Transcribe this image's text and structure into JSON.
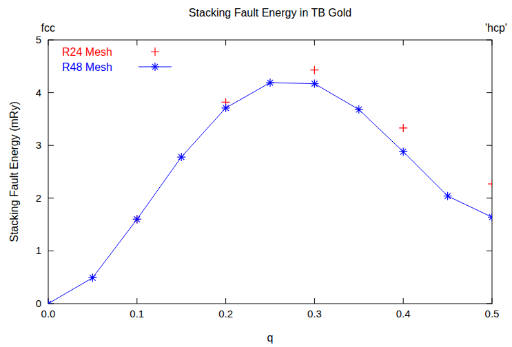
{
  "chart_data": {
    "type": "line",
    "title": "Stacking Fault Energy in TB Gold",
    "x_label": "q",
    "y_label": "Stacking Fault Energy (mRy)",
    "annotations": [
      {
        "text": "fcc",
        "x": 0
      },
      {
        "text": "'hcp'",
        "x": 0.5
      }
    ],
    "series": [
      {
        "name": "R24 Mesh",
        "color": "#ff0000",
        "marker": "plus",
        "line_style": "none",
        "x": [
          0.1,
          0.2,
          0.3,
          0.4,
          0.5
        ],
        "values": [
          1.6,
          3.82,
          4.43,
          3.33,
          2.27
        ]
      },
      {
        "name": "R48 Mesh",
        "color": "#0000ff",
        "marker": "star",
        "line_style": "solid",
        "x": [
          0,
          0.05,
          0.1,
          0.15,
          0.2,
          0.25,
          0.3,
          0.35,
          0.4,
          0.45,
          0.5
        ],
        "values": [
          0,
          0.49,
          1.6,
          2.78,
          3.71,
          4.19,
          4.17,
          3.68,
          2.88,
          2.04,
          1.64
        ]
      }
    ],
    "xlim": [
      0,
      0.5
    ],
    "xticks": [
      {
        "value": 0,
        "label": "0.0"
      },
      0.1,
      0.2,
      0.3,
      0.4,
      0.5
    ],
    "ylim": [
      0,
      5
    ],
    "yticks": [
      0,
      1,
      2,
      3,
      4,
      5
    ],
    "legend": "top-left",
    "grid": false
  }
}
